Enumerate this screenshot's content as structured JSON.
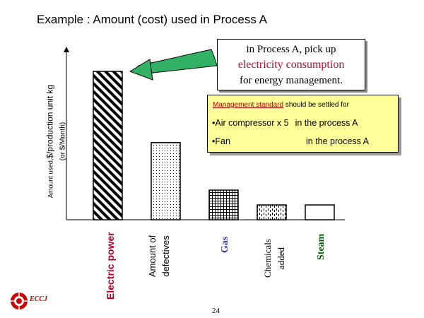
{
  "slide": {
    "title": "Example : Amount (cost) used in Process A",
    "page_number": "24",
    "logo_text": "ECCJ"
  },
  "callout": {
    "line1": "in Process A, pick up",
    "line2": "electricity consumption",
    "line3": "for energy management."
  },
  "note": {
    "heading_underlined": "Management standard",
    "heading_rest": " should be settled for",
    "items": [
      {
        "bullet": "•Air compressor  x 5",
        "text": "in the process A"
      },
      {
        "bullet": "•Fan",
        "text": "in the process A"
      }
    ]
  },
  "y_axis": {
    "label_small": "Amount used,",
    "label_main": "$/production unit kg",
    "label_sub": "(or $/Month)"
  },
  "chart_data": {
    "type": "bar",
    "categories": [
      "Electric power",
      "Amount of defectives",
      "Gas",
      "Chemicals added",
      "Steam"
    ],
    "category_lines": [
      [
        "Electric power"
      ],
      [
        "Amount of",
        "defectives"
      ],
      [
        "Gas"
      ],
      [
        "Chemicals",
        "added"
      ],
      [
        "Steam"
      ]
    ],
    "category_colors": [
      "#b0002a",
      "#000000",
      "#3333cc",
      "#000000",
      "#006600"
    ],
    "values": [
      100,
      52,
      20,
      10,
      10
    ],
    "patterns": [
      "diagonal-hatch",
      "dots",
      "grid",
      "dashes",
      "plain"
    ],
    "title": "Example : Amount (cost) used in Process A",
    "ylabel": "Amount used,$/production unit kg (or $/Month)",
    "xlabel": "",
    "ylim": [
      0,
      110
    ],
    "grid": false,
    "y_ticks": "none"
  }
}
